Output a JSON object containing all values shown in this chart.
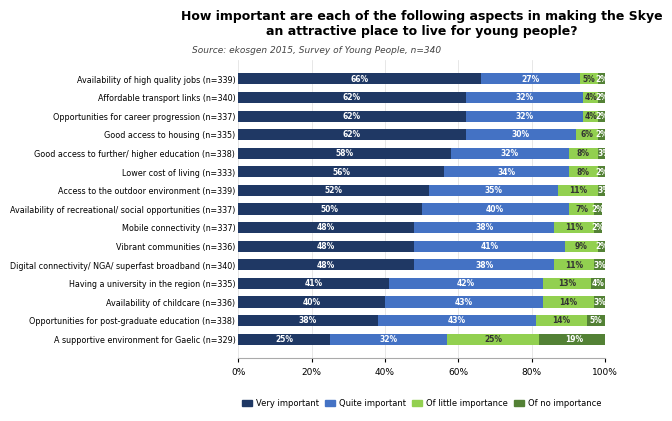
{
  "title": "How important are each of the following aspects in making the Skye\nan attractive place to live for young people?",
  "subtitle": "Source: ekosgen 2015, Survey of Young People, n=340",
  "categories": [
    "Availability of high quality jobs (n=339)",
    "Affordable transport links (n=340)",
    "Opportunities for career progression (n=337)",
    "Good access to housing (n=335)",
    "Good access to further/ higher education (n=338)",
    "Lower cost of living (n=333)",
    "Access to the outdoor environment (n=339)",
    "Availability of recreational/ social opportunities (n=337)",
    "Mobile connectivity (n=337)",
    "Vibrant communities (n=336)",
    "Digital connectivity/ NGA/ superfast broadband (n=340)",
    "Having a university in the region (n=335)",
    "Availability of childcare (n=336)",
    "Opportunities for post-graduate education (n=338)",
    "A supportive environment for Gaelic (n=329)"
  ],
  "very_important": [
    66,
    62,
    62,
    62,
    58,
    56,
    52,
    50,
    48,
    48,
    48,
    41,
    40,
    38,
    25
  ],
  "quite_important": [
    27,
    32,
    32,
    30,
    32,
    34,
    35,
    40,
    38,
    41,
    38,
    42,
    43,
    43,
    32
  ],
  "little_importance": [
    5,
    4,
    4,
    6,
    8,
    8,
    11,
    7,
    11,
    9,
    11,
    13,
    14,
    14,
    25
  ],
  "no_importance": [
    2,
    2,
    2,
    2,
    3,
    2,
    3,
    2,
    2,
    2,
    3,
    4,
    3,
    5,
    19
  ],
  "color_very": "#1f3864",
  "color_quite": "#4472c4",
  "color_little": "#92d050",
  "color_no": "#538135",
  "background": "#ffffff",
  "legend_labels": [
    "Very important",
    "Quite important",
    "Of little importance",
    "Of no importance"
  ]
}
